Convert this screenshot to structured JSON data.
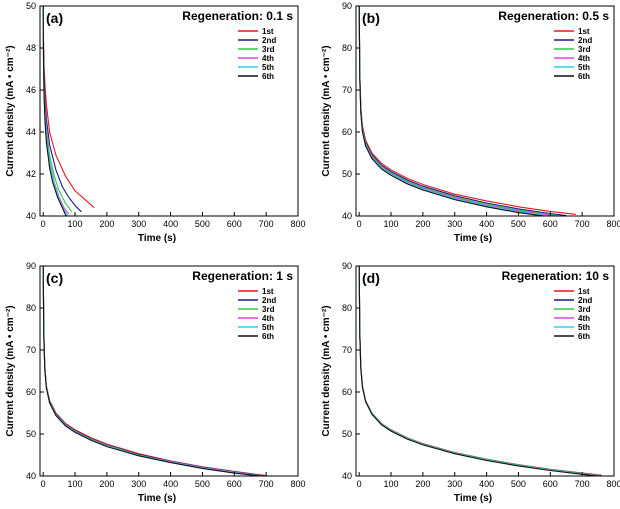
{
  "chart_data": [
    {
      "type": "line",
      "label": "(a)",
      "title": "Regeneration: 0.1 s",
      "xlabel": "Time (s)",
      "ylabel": "Current density (mA • cm⁻²)",
      "xlim": [
        -10,
        800
      ],
      "ylim": [
        40,
        50
      ],
      "xticks": [
        0,
        100,
        200,
        300,
        400,
        500,
        600,
        700,
        800
      ],
      "yticks": [
        40,
        42,
        44,
        46,
        48,
        50
      ],
      "series": [
        {
          "name": "1st",
          "color": "#e8141c",
          "x": [
            0,
            1,
            3,
            6,
            10,
            20,
            40,
            70,
            100,
            130,
            160
          ],
          "y": [
            50,
            48.4,
            47.2,
            46.1,
            45.3,
            44.0,
            42.9,
            41.9,
            41.2,
            40.8,
            40.4
          ]
        },
        {
          "name": "2nd",
          "color": "#1a1a8c",
          "x": [
            0,
            1,
            3,
            6,
            10,
            20,
            40,
            60,
            80,
            100,
            120
          ],
          "y": [
            50,
            48.0,
            46.6,
            45.5,
            44.6,
            43.4,
            42.2,
            41.4,
            40.9,
            40.5,
            40.2
          ]
        },
        {
          "name": "3rd",
          "color": "#2ecc40",
          "x": [
            0,
            1,
            3,
            6,
            10,
            20,
            35,
            50,
            70,
            90
          ],
          "y": [
            50,
            47.7,
            46.1,
            45.0,
            44.1,
            42.9,
            41.9,
            41.2,
            40.6,
            40.2
          ]
        },
        {
          "name": "4th",
          "color": "#e040e0",
          "x": [
            0,
            1,
            3,
            6,
            10,
            20,
            35,
            50,
            65,
            80
          ],
          "y": [
            50,
            47.6,
            45.9,
            44.8,
            43.9,
            42.6,
            41.6,
            40.9,
            40.4,
            40.1
          ]
        },
        {
          "name": "5th",
          "color": "#20d8e8",
          "x": [
            0,
            1,
            3,
            6,
            10,
            20,
            35,
            50,
            65,
            78
          ],
          "y": [
            50,
            47.5,
            45.8,
            44.6,
            43.7,
            42.5,
            41.5,
            40.8,
            40.3,
            40.0
          ]
        },
        {
          "name": "6th",
          "color": "#111111",
          "x": [
            0,
            1,
            3,
            6,
            10,
            20,
            30,
            45,
            60,
            72
          ],
          "y": [
            50,
            47.4,
            45.6,
            44.4,
            43.5,
            42.3,
            41.6,
            40.9,
            40.4,
            40.0
          ]
        }
      ]
    },
    {
      "type": "line",
      "label": "(b)",
      "title": "Regeneration: 0.5 s",
      "xlabel": "Time (s)",
      "ylabel": "Current density (mA • cm⁻²)",
      "xlim": [
        -10,
        800
      ],
      "ylim": [
        40,
        90
      ],
      "xticks": [
        0,
        100,
        200,
        300,
        400,
        500,
        600,
        700,
        800
      ],
      "yticks": [
        40,
        50,
        60,
        70,
        80,
        90
      ],
      "series": [
        {
          "name": "1st",
          "color": "#e8141c",
          "x": [
            0,
            2,
            5,
            10,
            20,
            40,
            70,
            100,
            150,
            200,
            300,
            400,
            500,
            600,
            680
          ],
          "y": [
            90,
            74,
            66,
            61.5,
            58,
            55,
            52.5,
            51,
            49,
            47.5,
            45.2,
            43.6,
            42.2,
            41.1,
            40.4
          ]
        },
        {
          "name": "2nd",
          "color": "#1a1a8c",
          "x": [
            0,
            2,
            5,
            10,
            20,
            40,
            70,
            100,
            150,
            200,
            300,
            400,
            500,
            600,
            650
          ],
          "y": [
            90,
            73.5,
            65.5,
            61,
            57.6,
            54.6,
            52.1,
            50.6,
            48.6,
            47.1,
            44.8,
            43.1,
            41.7,
            40.6,
            40.1
          ]
        },
        {
          "name": "3rd",
          "color": "#2ecc40",
          "x": [
            0,
            2,
            5,
            10,
            20,
            40,
            70,
            100,
            150,
            200,
            300,
            400,
            500,
            600,
            630
          ],
          "y": [
            90,
            73.2,
            65.2,
            60.7,
            57.3,
            54.3,
            51.8,
            50.3,
            48.3,
            46.8,
            44.5,
            42.8,
            41.4,
            40.3,
            40.0
          ]
        },
        {
          "name": "4th",
          "color": "#e040e0",
          "x": [
            0,
            2,
            5,
            10,
            20,
            40,
            70,
            100,
            150,
            200,
            300,
            400,
            500,
            600,
            625
          ],
          "y": [
            90,
            73,
            65,
            60.5,
            57.1,
            54.1,
            51.6,
            50.1,
            48.1,
            46.6,
            44.3,
            42.6,
            41.2,
            40.2,
            40.0
          ]
        },
        {
          "name": "5th",
          "color": "#20d8e8",
          "x": [
            0,
            2,
            5,
            10,
            20,
            40,
            70,
            100,
            150,
            200,
            300,
            400,
            500,
            590
          ],
          "y": [
            90,
            72.8,
            64.8,
            60.3,
            56.9,
            53.9,
            51.4,
            49.9,
            47.9,
            46.4,
            44.1,
            42.4,
            41.0,
            40.0
          ]
        },
        {
          "name": "6th",
          "color": "#111111",
          "x": [
            0,
            2,
            5,
            10,
            20,
            40,
            70,
            100,
            150,
            200,
            300,
            400,
            500,
            580
          ],
          "y": [
            90,
            72.6,
            64.6,
            60.1,
            56.7,
            53.7,
            51.2,
            49.7,
            47.7,
            46.2,
            43.9,
            42.2,
            40.8,
            40.0
          ]
        }
      ]
    },
    {
      "type": "line",
      "label": "(c)",
      "title": "Regeneration: 1 s",
      "xlabel": "Time (s)",
      "ylabel": "Current density (mA • cm⁻²)",
      "xlim": [
        -10,
        800
      ],
      "ylim": [
        40,
        90
      ],
      "xticks": [
        0,
        100,
        200,
        300,
        400,
        500,
        600,
        700,
        800
      ],
      "yticks": [
        40,
        50,
        60,
        70,
        80,
        90
      ],
      "series": [
        {
          "name": "1st",
          "color": "#e8141c",
          "x": [
            0,
            2,
            5,
            10,
            20,
            40,
            70,
            100,
            150,
            200,
            300,
            400,
            500,
            600,
            700
          ],
          "y": [
            90,
            74,
            66,
            61.5,
            58,
            55,
            52.5,
            51,
            49.1,
            47.6,
            45.3,
            43.6,
            42.2,
            41.1,
            40.1
          ]
        },
        {
          "name": "2nd",
          "color": "#1a1a8c",
          "x": [
            0,
            2,
            5,
            10,
            20,
            40,
            70,
            100,
            150,
            200,
            300,
            400,
            500,
            600,
            690
          ],
          "y": [
            90,
            73.8,
            65.8,
            61.3,
            57.8,
            54.8,
            52.3,
            50.8,
            48.9,
            47.4,
            45.1,
            43.5,
            42.1,
            41.0,
            40.1
          ]
        },
        {
          "name": "3rd",
          "color": "#2ecc40",
          "x": [
            0,
            2,
            5,
            10,
            20,
            40,
            70,
            100,
            150,
            200,
            300,
            400,
            500,
            600,
            690
          ],
          "y": [
            90,
            73.7,
            65.7,
            61.2,
            57.7,
            54.7,
            52.2,
            50.7,
            48.8,
            47.3,
            45.0,
            43.4,
            42.0,
            40.9,
            40.0
          ]
        },
        {
          "name": "4th",
          "color": "#e040e0",
          "x": [
            0,
            2,
            5,
            10,
            20,
            40,
            70,
            100,
            150,
            200,
            300,
            400,
            500,
            600,
            690
          ],
          "y": [
            90,
            73.6,
            65.6,
            61.1,
            57.6,
            54.6,
            52.1,
            50.6,
            48.7,
            47.2,
            44.9,
            43.4,
            42.0,
            40.9,
            40.0
          ]
        },
        {
          "name": "5th",
          "color": "#20d8e8",
          "x": [
            0,
            2,
            5,
            10,
            20,
            40,
            70,
            100,
            150,
            200,
            300,
            400,
            500,
            600,
            685
          ],
          "y": [
            90,
            73.5,
            65.5,
            61.0,
            57.5,
            54.5,
            52.0,
            50.5,
            48.6,
            47.1,
            44.9,
            43.3,
            41.9,
            40.8,
            40.0
          ]
        },
        {
          "name": "6th",
          "color": "#111111",
          "x": [
            0,
            2,
            5,
            10,
            20,
            40,
            70,
            100,
            150,
            200,
            300,
            400,
            500,
            600,
            680
          ],
          "y": [
            90,
            73.4,
            65.4,
            60.9,
            57.4,
            54.4,
            51.9,
            50.4,
            48.5,
            47.0,
            44.8,
            43.2,
            41.8,
            40.7,
            40.0
          ]
        }
      ]
    },
    {
      "type": "line",
      "label": "(d)",
      "title": "Regeneration: 10 s",
      "xlabel": "Time (s)",
      "ylabel": "Current density (mA • cm⁻²)",
      "xlim": [
        -10,
        800
      ],
      "ylim": [
        40,
        90
      ],
      "xticks": [
        0,
        100,
        200,
        300,
        400,
        500,
        600,
        700,
        800
      ],
      "yticks": [
        40,
        50,
        60,
        70,
        80,
        90
      ],
      "series": [
        {
          "name": "1st",
          "color": "#e8141c",
          "x": [
            0,
            2,
            5,
            10,
            20,
            40,
            70,
            100,
            150,
            200,
            300,
            400,
            500,
            600,
            700,
            760
          ],
          "y": [
            90,
            74,
            66,
            61.5,
            58,
            55,
            52.5,
            51,
            49.1,
            47.7,
            45.6,
            44.0,
            42.7,
            41.6,
            40.7,
            40.2
          ]
        },
        {
          "name": "2nd",
          "color": "#1a1a8c",
          "x": [
            0,
            2,
            5,
            10,
            20,
            40,
            70,
            100,
            150,
            200,
            300,
            400,
            500,
            600,
            700,
            760
          ],
          "y": [
            90,
            73.9,
            65.9,
            61.4,
            57.9,
            54.9,
            52.4,
            50.9,
            49.0,
            47.6,
            45.5,
            43.9,
            42.6,
            41.5,
            40.6,
            40.1
          ]
        },
        {
          "name": "3rd",
          "color": "#2ecc40",
          "x": [
            0,
            2,
            5,
            10,
            20,
            40,
            70,
            100,
            150,
            200,
            300,
            400,
            500,
            600,
            700,
            755
          ],
          "y": [
            90,
            73.9,
            65.9,
            61.4,
            57.9,
            54.9,
            52.4,
            50.9,
            49.0,
            47.6,
            45.5,
            43.9,
            42.6,
            41.5,
            40.6,
            40.1
          ]
        },
        {
          "name": "4th",
          "color": "#e040e0",
          "x": [
            0,
            2,
            5,
            10,
            20,
            40,
            70,
            100,
            150,
            200,
            300,
            400,
            500,
            600,
            700,
            750
          ],
          "y": [
            90,
            73.8,
            65.8,
            61.3,
            57.8,
            54.8,
            52.3,
            50.8,
            48.9,
            47.5,
            45.4,
            43.8,
            42.5,
            41.4,
            40.5,
            40.1
          ]
        },
        {
          "name": "5th",
          "color": "#20d8e8",
          "x": [
            0,
            2,
            5,
            10,
            20,
            40,
            70,
            100,
            150,
            200,
            300,
            400,
            500,
            600,
            700,
            750
          ],
          "y": [
            90,
            73.8,
            65.8,
            61.3,
            57.8,
            54.8,
            52.3,
            50.8,
            48.9,
            47.5,
            45.4,
            43.8,
            42.5,
            41.4,
            40.5,
            40.0
          ]
        },
        {
          "name": "6th",
          "color": "#111111",
          "x": [
            0,
            2,
            5,
            10,
            20,
            40,
            70,
            100,
            150,
            200,
            300,
            400,
            500,
            600,
            700,
            745
          ],
          "y": [
            90,
            73.7,
            65.7,
            61.2,
            57.7,
            54.7,
            52.2,
            50.7,
            48.8,
            47.4,
            45.3,
            43.7,
            42.4,
            41.3,
            40.4,
            40.0
          ]
        }
      ]
    }
  ]
}
